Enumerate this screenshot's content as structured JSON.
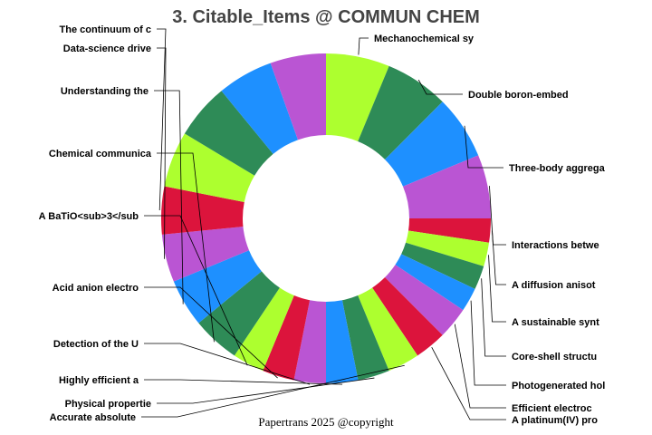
{
  "chart_data": {
    "type": "pie",
    "hole": true,
    "title": "3. Citable_Items @ COMMUN CHEM",
    "footer": "Papertrans 2025 @copyright",
    "values": [
      8,
      8,
      8,
      8,
      3,
      3,
      3,
      3,
      4,
      4,
      4,
      4,
      4,
      4,
      4,
      4,
      6,
      6,
      6,
      6,
      7,
      7,
      7,
      7
    ],
    "labels": [
      "Mechanochemical sy",
      "Double boron-embed",
      "Three-body aggrega",
      "Interactions betwe",
      "A diffusion anisot",
      "A sustainable synt",
      "Core-shell structu",
      "Photogenerated hol",
      "Efficient electroc",
      "A platinum(IV) pro",
      "Accurate absolute",
      "Physical propertie",
      "Highly efficient a",
      "Detection of the U",
      "Acid anion electro",
      "A BaTiO<sub>3</sub",
      "Chemical communica",
      "Understanding the ",
      "Data-science drive",
      "The continuum of c",
      "",
      "",
      "",
      ""
    ],
    "colors": [
      "#adff2f",
      "#2e8b57",
      "#1e90ff",
      "#ba55d3",
      "#dc143c"
    ]
  }
}
